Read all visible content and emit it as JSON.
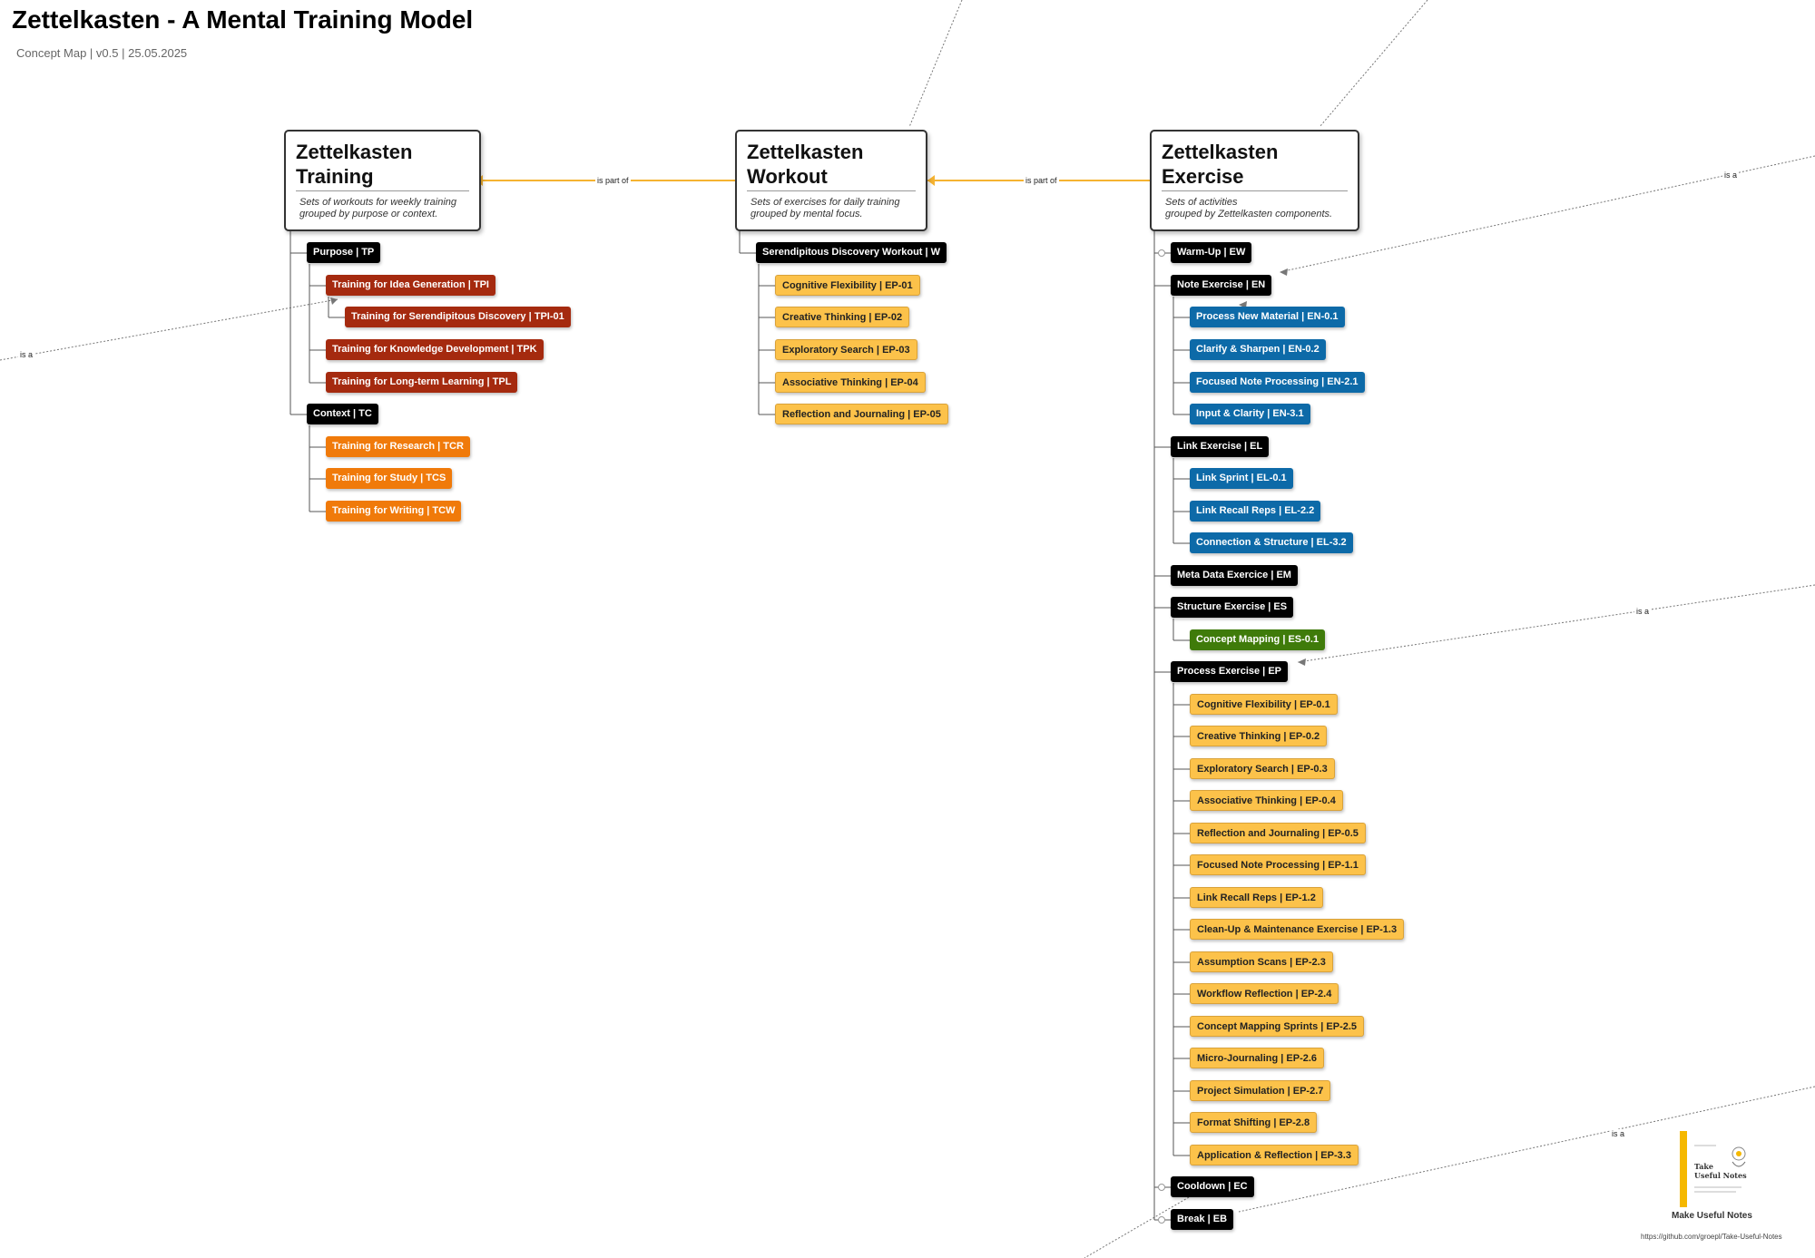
{
  "header": {
    "title": "Zettelkasten - A Mental Training Model",
    "subtitle": "Concept Map | v0.5 | 25.05.2025"
  },
  "concepts": {
    "training": {
      "title": "Zettelkasten\nTraining",
      "description": "Sets of workouts for weekly training\ngrouped by purpose or context."
    },
    "workout": {
      "title": "Zettelkasten\nWorkout",
      "description": "Sets of exercises for daily training\ngrouped by mental focus."
    },
    "exercise": {
      "title": "Zettelkasten\nExercise",
      "description": "Sets of activities\ngrouped by Zettelkasten components."
    }
  },
  "relations": {
    "is_part_of": "is part of",
    "is_a": "is a"
  },
  "training_tree": {
    "purpose": "Purpose | TP",
    "purpose_items": [
      "Training for Idea Generation | TPI",
      "Training for Serendipitous Discovery | TPI-01",
      "Training for Knowledge Development | TPK",
      "Training for Long-term Learning | TPL"
    ],
    "context": "Context | TC",
    "context_items": [
      "Training for Research | TCR",
      "Training for Study  | TCS",
      "Training for Writing  | TCW"
    ]
  },
  "workout_tree": {
    "workout": "Serendipitous Discovery Workout | W",
    "items": [
      "Cognitive Flexibility | EP-01",
      "Creative Thinking | EP-02",
      "Exploratory Search | EP-03",
      "Associative Thinking | EP-04",
      "Reflection and Journaling | EP-05"
    ]
  },
  "exercise_tree": {
    "warmup": "Warm-Up | EW",
    "note": "Note Exercise | EN",
    "note_items": [
      "Process New Material | EN-0.1",
      "Clarify & Sharpen | EN-0.2",
      "Focused Note Processing | EN-2.1",
      "Input & Clarity | EN-3.1"
    ],
    "link": "Link Exercise | EL",
    "link_items": [
      "Link Sprint | EL-0.1",
      "Link Recall Reps |  EL-2.2",
      "Connection & Structure | EL-3.2"
    ],
    "meta": "Meta Data Exercice | EM",
    "structure": "Structure Exercise | ES",
    "structure_items": [
      "Concept Mapping | ES-0.1"
    ],
    "process": "Process Exercise | EP",
    "process_items": [
      "Cognitive Flexibility | EP-0.1",
      "Creative Thinking | EP-0.2",
      "Exploratory Search | EP-0.3",
      "Associative Thinking | EP-0.4",
      "Reflection and Journaling | EP-0.5",
      "Focused Note Processing | EP-1.1",
      "Link Recall Reps | EP-1.2",
      "Clean-Up & Maintenance Exercise | EP-1.3",
      "Assumption Scans | EP-2.3",
      "Workflow Reflection | EP-2.4",
      "Concept Mapping Sprints | EP-2.5",
      "Micro-Journaling | EP-2.6",
      "Project Simulation | EP-2.7",
      "Format Shifting | EP-2.8",
      "Application & Reflection | EP-3.3"
    ],
    "cooldown": "Cooldown | EC",
    "break": "Break | EB"
  },
  "footer": {
    "caption": "Make Useful Notes",
    "url": "https://github.com/groepl/Take-Useful-Notes",
    "logo_text": "Take\nUseful Notes"
  },
  "colors": {
    "connector_orange": "#f5b331",
    "purpose_red": "#a52a0f",
    "context_orange": "#f07a0a",
    "process_yellow": "#fcc24a",
    "note_blue": "#0d6aa8",
    "structure_green": "#3f7b0a"
  }
}
